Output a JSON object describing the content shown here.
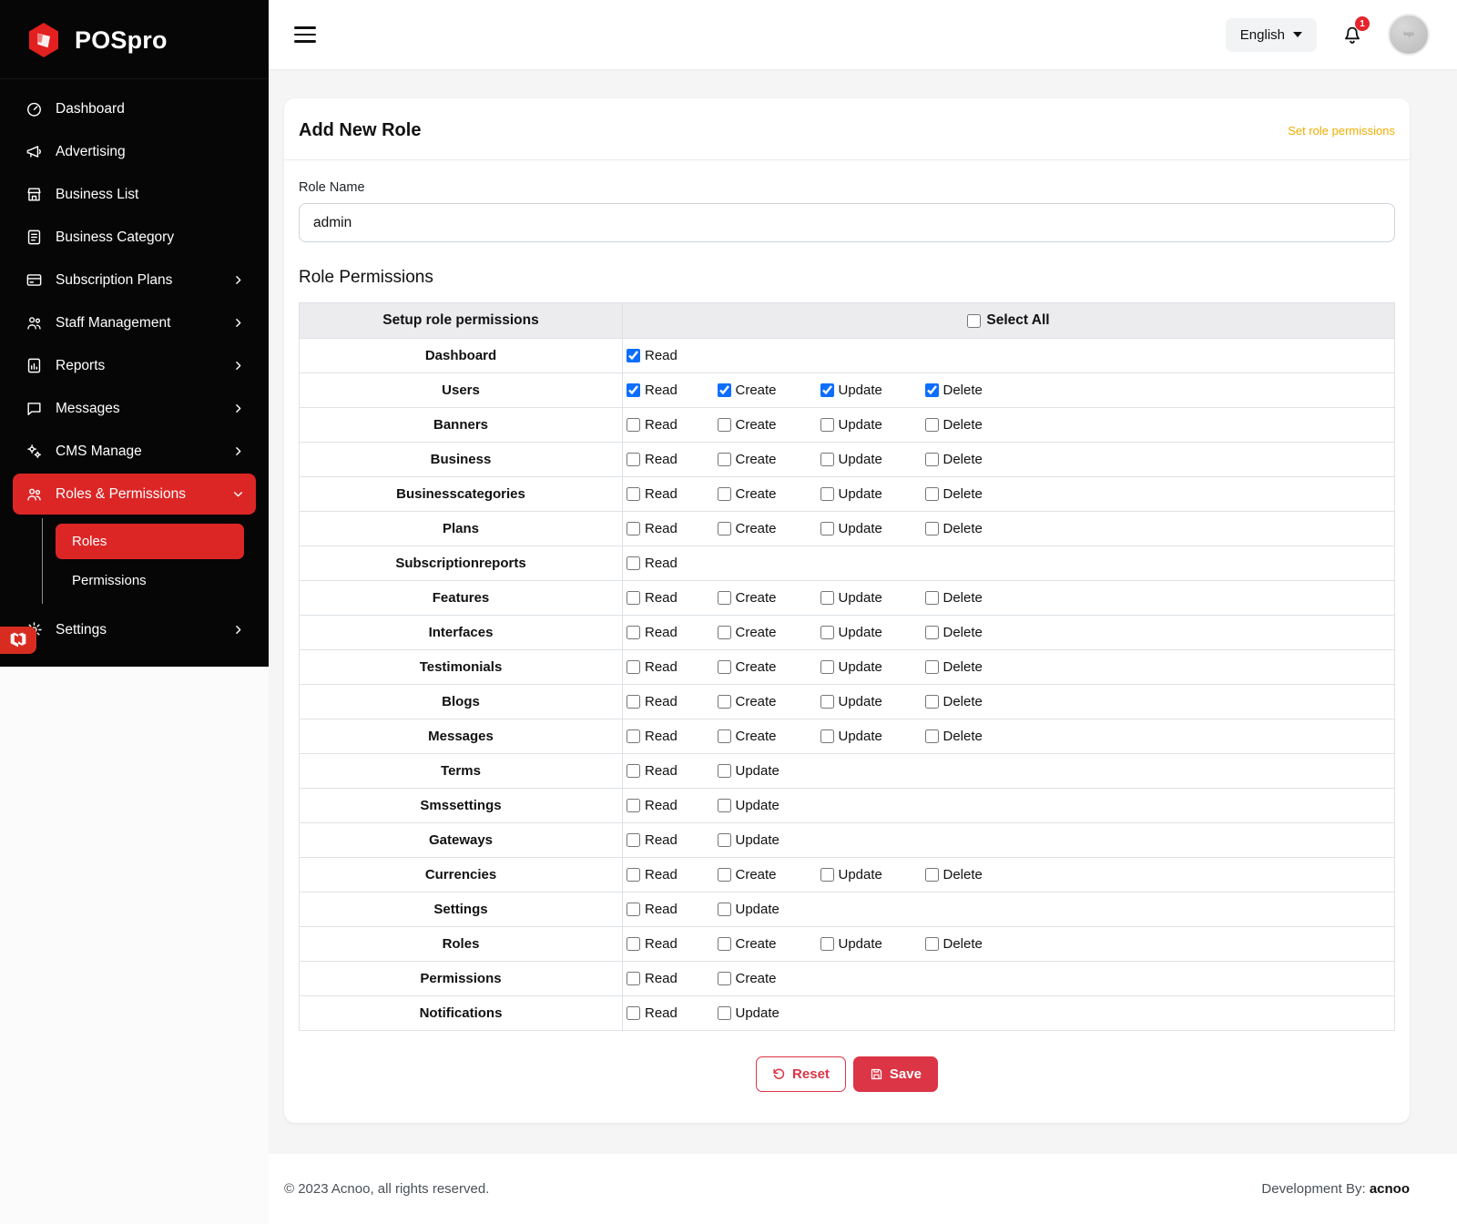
{
  "colors": {
    "brand_red": "#dc2626",
    "sidebar_bg": "#060606",
    "link_yellow": "#f0ad00",
    "checkbox_accent": "#0d6efd",
    "danger": "#dc3545"
  },
  "sidebar": {
    "brand": "POSpro",
    "items": [
      {
        "label": "Dashboard",
        "icon": "dashboard-icon",
        "chevron": false,
        "active": false,
        "expanded": false
      },
      {
        "label": "Advertising",
        "icon": "advertising-icon",
        "chevron": false,
        "active": false,
        "expanded": false
      },
      {
        "label": "Business List",
        "icon": "business-list-icon",
        "chevron": false,
        "active": false,
        "expanded": false
      },
      {
        "label": "Business Category",
        "icon": "business-category-icon",
        "chevron": false,
        "active": false,
        "expanded": false
      },
      {
        "label": "Subscription Plans",
        "icon": "subscription-plans-icon",
        "chevron": true,
        "active": false,
        "expanded": false
      },
      {
        "label": "Staff Management",
        "icon": "staff-management-icon",
        "chevron": true,
        "active": false,
        "expanded": false
      },
      {
        "label": "Reports",
        "icon": "reports-icon",
        "chevron": true,
        "active": false,
        "expanded": false
      },
      {
        "label": "Messages",
        "icon": "messages-icon",
        "chevron": true,
        "active": false,
        "expanded": false
      },
      {
        "label": "CMS Manage",
        "icon": "cms-manage-icon",
        "chevron": true,
        "active": false,
        "expanded": false
      },
      {
        "label": "Roles & Permissions",
        "icon": "roles-permissions-icon",
        "chevron": true,
        "active": true,
        "expanded": true
      },
      {
        "label": "Settings",
        "icon": "settings-icon",
        "chevron": true,
        "active": false,
        "expanded": false
      }
    ],
    "submenu": [
      {
        "label": "Roles",
        "active": true
      },
      {
        "label": "Permissions",
        "active": false
      }
    ]
  },
  "topbar": {
    "language": "English",
    "notification_count": "1"
  },
  "page": {
    "card_title": "Add New Role",
    "permissions_link": "Set role permissions",
    "role_name_label": "Role Name",
    "role_name_value": "admin",
    "section_title": "Role Permissions",
    "table": {
      "header_col1": "Setup role permissions",
      "select_all": "Select All",
      "rows": [
        {
          "module": "Dashboard",
          "perms": [
            {
              "label": "Read",
              "checked": true
            }
          ]
        },
        {
          "module": "Users",
          "perms": [
            {
              "label": "Read",
              "checked": true
            },
            {
              "label": "Create",
              "checked": true
            },
            {
              "label": "Update",
              "checked": true
            },
            {
              "label": "Delete",
              "checked": true
            }
          ]
        },
        {
          "module": "Banners",
          "perms": [
            {
              "label": "Read",
              "checked": false
            },
            {
              "label": "Create",
              "checked": false
            },
            {
              "label": "Update",
              "checked": false
            },
            {
              "label": "Delete",
              "checked": false
            }
          ]
        },
        {
          "module": "Business",
          "perms": [
            {
              "label": "Read",
              "checked": false
            },
            {
              "label": "Create",
              "checked": false
            },
            {
              "label": "Update",
              "checked": false
            },
            {
              "label": "Delete",
              "checked": false
            }
          ]
        },
        {
          "module": "Businesscategories",
          "perms": [
            {
              "label": "Read",
              "checked": false
            },
            {
              "label": "Create",
              "checked": false
            },
            {
              "label": "Update",
              "checked": false
            },
            {
              "label": "Delete",
              "checked": false
            }
          ]
        },
        {
          "module": "Plans",
          "perms": [
            {
              "label": "Read",
              "checked": false
            },
            {
              "label": "Create",
              "checked": false
            },
            {
              "label": "Update",
              "checked": false
            },
            {
              "label": "Delete",
              "checked": false
            }
          ]
        },
        {
          "module": "Subscriptionreports",
          "perms": [
            {
              "label": "Read",
              "checked": false
            }
          ]
        },
        {
          "module": "Features",
          "perms": [
            {
              "label": "Read",
              "checked": false
            },
            {
              "label": "Create",
              "checked": false
            },
            {
              "label": "Update",
              "checked": false
            },
            {
              "label": "Delete",
              "checked": false
            }
          ]
        },
        {
          "module": "Interfaces",
          "perms": [
            {
              "label": "Read",
              "checked": false
            },
            {
              "label": "Create",
              "checked": false
            },
            {
              "label": "Update",
              "checked": false
            },
            {
              "label": "Delete",
              "checked": false
            }
          ]
        },
        {
          "module": "Testimonials",
          "perms": [
            {
              "label": "Read",
              "checked": false
            },
            {
              "label": "Create",
              "checked": false
            },
            {
              "label": "Update",
              "checked": false
            },
            {
              "label": "Delete",
              "checked": false
            }
          ]
        },
        {
          "module": "Blogs",
          "perms": [
            {
              "label": "Read",
              "checked": false
            },
            {
              "label": "Create",
              "checked": false
            },
            {
              "label": "Update",
              "checked": false
            },
            {
              "label": "Delete",
              "checked": false
            }
          ]
        },
        {
          "module": "Messages",
          "perms": [
            {
              "label": "Read",
              "checked": false
            },
            {
              "label": "Create",
              "checked": false
            },
            {
              "label": "Update",
              "checked": false
            },
            {
              "label": "Delete",
              "checked": false
            }
          ]
        },
        {
          "module": "Terms",
          "perms": [
            {
              "label": "Read",
              "checked": false
            },
            {
              "label": "Update",
              "checked": false
            }
          ]
        },
        {
          "module": "Smssettings",
          "perms": [
            {
              "label": "Read",
              "checked": false
            },
            {
              "label": "Update",
              "checked": false
            }
          ]
        },
        {
          "module": "Gateways",
          "perms": [
            {
              "label": "Read",
              "checked": false
            },
            {
              "label": "Update",
              "checked": false
            }
          ]
        },
        {
          "module": "Currencies",
          "perms": [
            {
              "label": "Read",
              "checked": false
            },
            {
              "label": "Create",
              "checked": false
            },
            {
              "label": "Update",
              "checked": false
            },
            {
              "label": "Delete",
              "checked": false
            }
          ]
        },
        {
          "module": "Settings",
          "perms": [
            {
              "label": "Read",
              "checked": false
            },
            {
              "label": "Update",
              "checked": false
            }
          ]
        },
        {
          "module": "Roles",
          "perms": [
            {
              "label": "Read",
              "checked": false
            },
            {
              "label": "Create",
              "checked": false
            },
            {
              "label": "Update",
              "checked": false
            },
            {
              "label": "Delete",
              "checked": false
            }
          ]
        },
        {
          "module": "Permissions",
          "perms": [
            {
              "label": "Read",
              "checked": false
            },
            {
              "label": "Create",
              "checked": false
            }
          ]
        },
        {
          "module": "Notifications",
          "perms": [
            {
              "label": "Read",
              "checked": false
            },
            {
              "label": "Update",
              "checked": false
            }
          ]
        }
      ]
    },
    "reset_label": "Reset",
    "save_label": "Save"
  },
  "footer": {
    "copyright": "© 2023 Acnoo, all rights reserved.",
    "dev_by": "Development By:",
    "dev_name": "acnoo"
  }
}
